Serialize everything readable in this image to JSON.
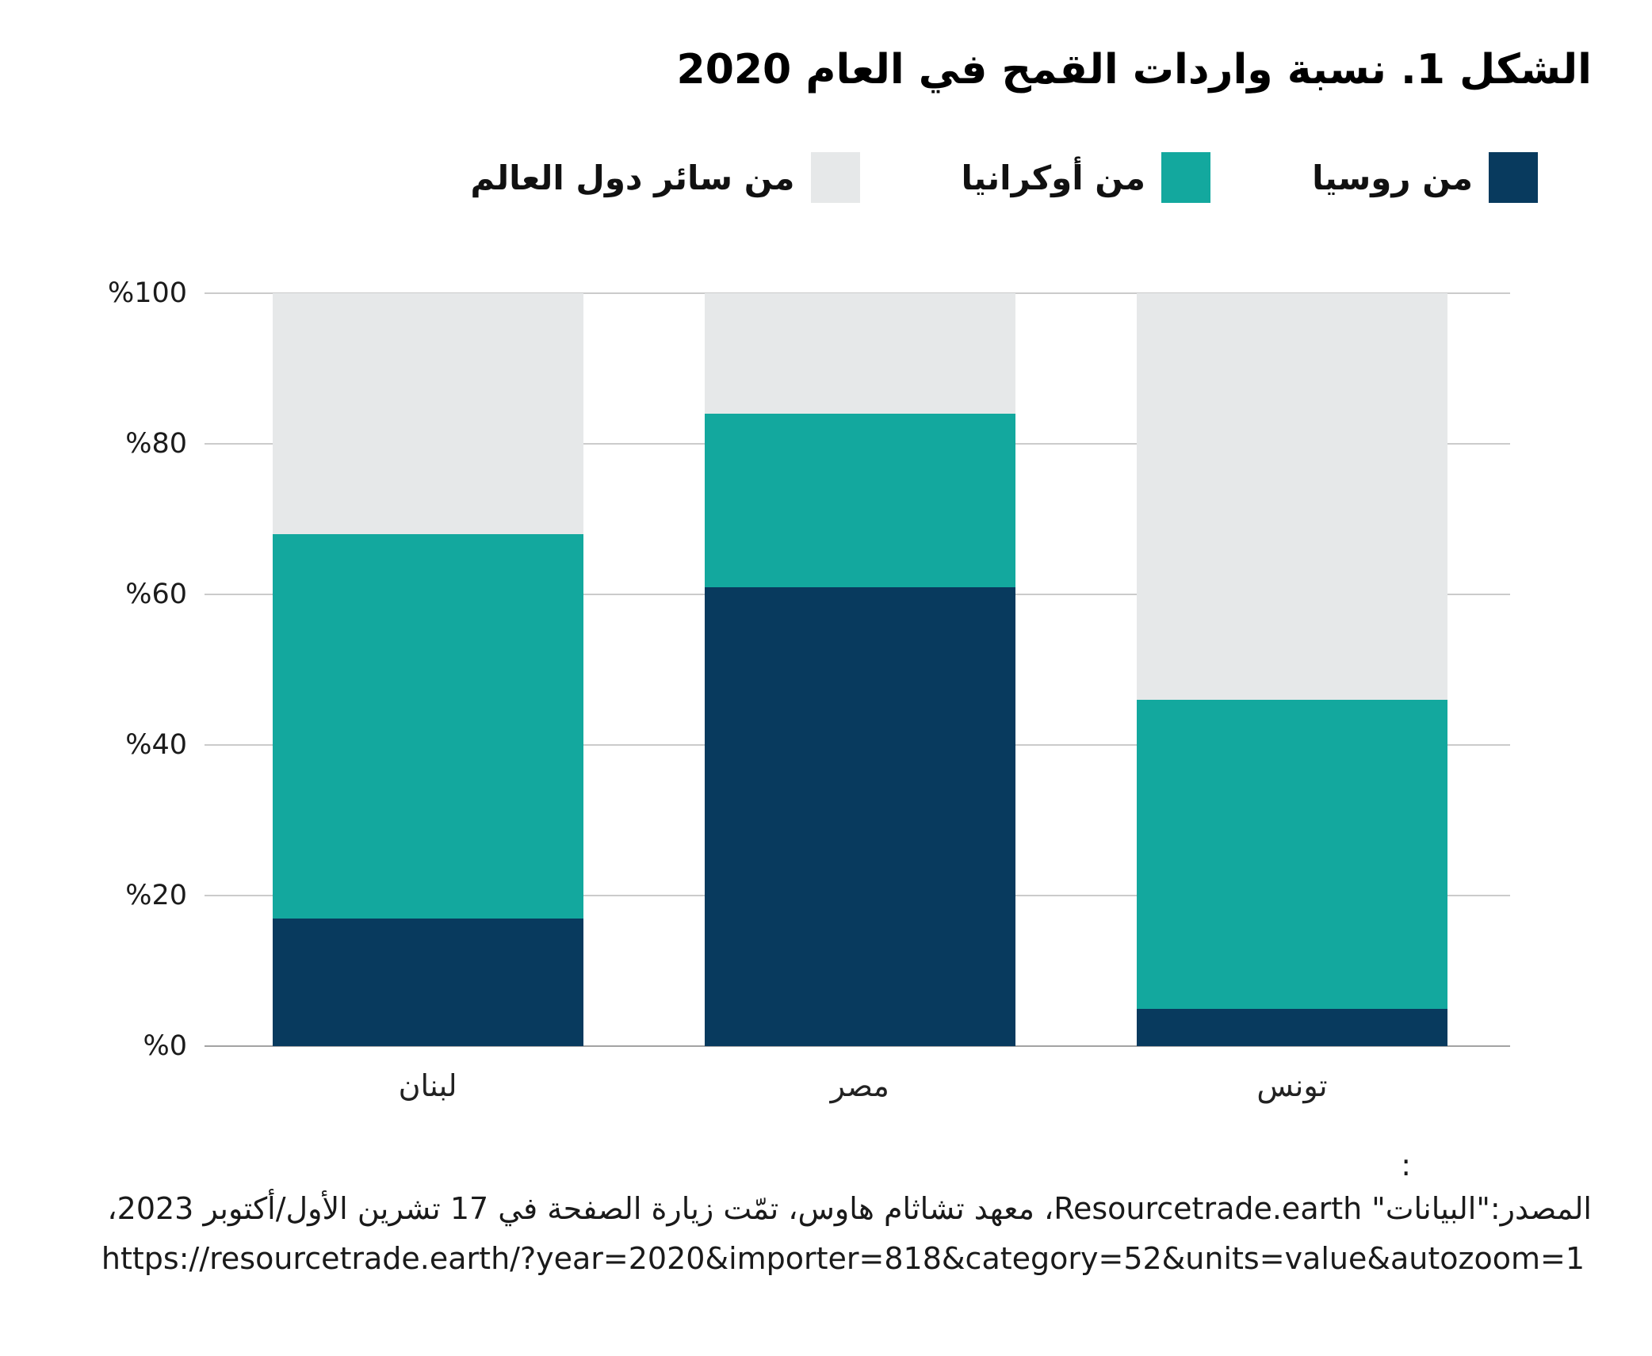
{
  "title": "الشكل 1. نسبة واردات القمح في العام 2020",
  "legend": {
    "items": [
      {
        "id": "russia",
        "label": "من روسيا",
        "color": "#083A5E"
      },
      {
        "id": "ukraine",
        "label": "من أوكرانيا",
        "color": "#13A89E"
      },
      {
        "id": "rest-of-world",
        "label": "من سائر دول العالم",
        "color": "#E6E8E9"
      }
    ]
  },
  "chart_data": {
    "type": "bar",
    "stacked": true,
    "direction": "rtl",
    "title": "الشكل 1. نسبة واردات القمح في العام 2020",
    "categories": [
      "لبنان",
      "مصر",
      "تونس"
    ],
    "series": [
      {
        "name": "من روسيا",
        "color": "#083A5E",
        "values": [
          17,
          61,
          5
        ]
      },
      {
        "name": "من أوكرانيا",
        "color": "#13A89E",
        "values": [
          51,
          23,
          41
        ]
      },
      {
        "name": "من سائر دول العالم",
        "color": "#E6E8E9",
        "values": [
          32,
          16,
          54
        ]
      }
    ],
    "ylim": [
      0,
      100
    ],
    "yticks": [
      {
        "value": 0,
        "label": "%0"
      },
      {
        "value": 20,
        "label": "%20"
      },
      {
        "value": 40,
        "label": "%40"
      },
      {
        "value": 60,
        "label": "%60"
      },
      {
        "value": 80,
        "label": "%80"
      },
      {
        "value": 100,
        "label": "%100"
      }
    ],
    "grid": true,
    "gridline_color": "#cbcbcb",
    "baseline_color": "#a3a3a3",
    "legend_position": "top-right"
  },
  "source": {
    "colon": ":",
    "text": "المصدر:\"البيانات\" Resourcetrade.earth، معهد تشاثام هاوس، تمّت زيارة الصفحة في 17 تشرين الأول/أكتوبر 2023،",
    "url": "https://resourcetrade.earth/?year=2020&importer=818&category=52&units=value&autozoom=1"
  }
}
